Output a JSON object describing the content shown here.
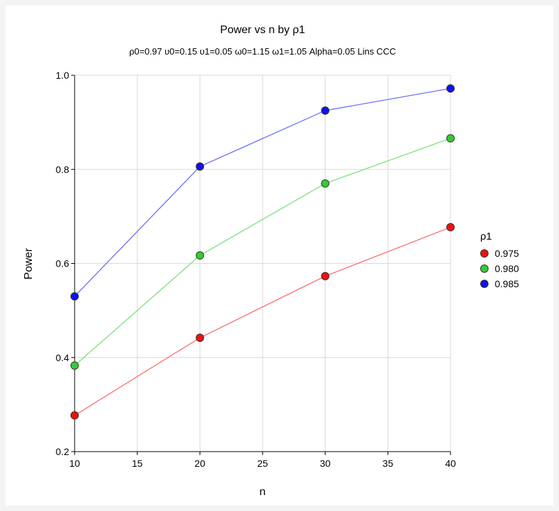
{
  "chart_data": {
    "type": "line",
    "title": "Power vs n by ρ1",
    "subtitle": "ρ0=0.97 υ0=0.15 υ1=0.05 ω0=1.15 ω1=1.05 Alpha=0.05 Lins CCC",
    "xlabel": "n",
    "ylabel": "Power",
    "xlim": [
      10,
      40
    ],
    "ylim": [
      0.2,
      1.0
    ],
    "xticks": [
      10,
      15,
      20,
      25,
      30,
      35,
      40
    ],
    "yticks": [
      0.2,
      0.4,
      0.6,
      0.8,
      1.0
    ],
    "grid": true,
    "legend_position": "right",
    "legend_title": "ρ1",
    "x": [
      10,
      20,
      30,
      40
    ],
    "series": [
      {
        "name": "0.975",
        "values": [
          0.277,
          0.442,
          0.573,
          0.677
        ],
        "line_color": "#ff6a6a",
        "marker_color": "#ee1111"
      },
      {
        "name": "0.980",
        "values": [
          0.383,
          0.617,
          0.77,
          0.866
        ],
        "line_color": "#7be07b",
        "marker_color": "#33cc33"
      },
      {
        "name": "0.985",
        "values": [
          0.53,
          0.806,
          0.925,
          0.972
        ],
        "line_color": "#6b6bff",
        "marker_color": "#1111ee"
      }
    ]
  }
}
